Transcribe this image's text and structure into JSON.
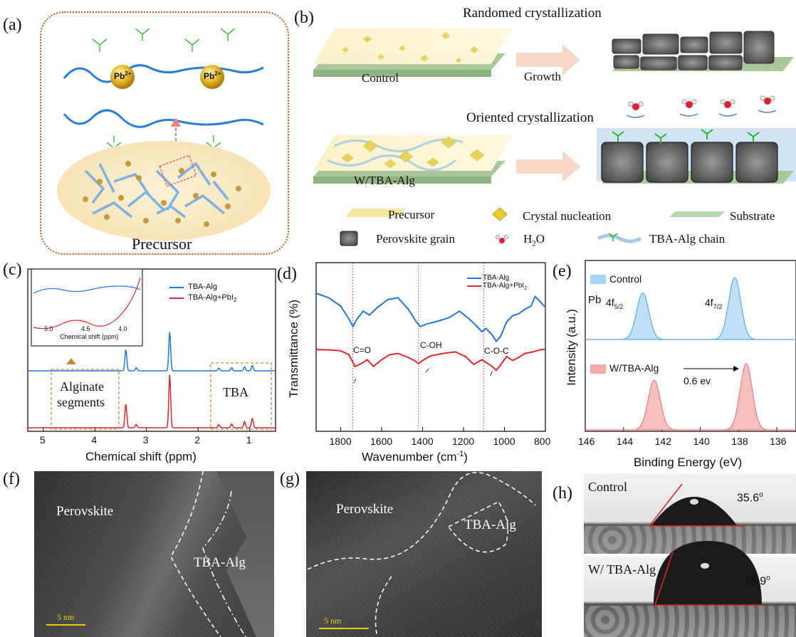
{
  "panels": {
    "a": {
      "label": "(a)",
      "ion": "Pb",
      "ion_charge": "2+",
      "caption": "Precursor"
    },
    "b": {
      "label": "(b)",
      "title_random": "Randomed crystallization",
      "title_oriented": "Oriented crystallization",
      "film_control": "Control",
      "film_tba": "W/TBA-Alg",
      "arrow_label": "Growth",
      "legend": {
        "precursor": "Precursor",
        "nucleation": "Crystal nucleation",
        "substrate": "Substrate",
        "grain": "Perovskite grain",
        "water": "H2O",
        "chain": "TBA-Alg chain"
      }
    },
    "c": {
      "label": "(c)",
      "xlabel": "Chemical shift (ppm)",
      "xticks": [
        "5",
        "4",
        "3",
        "2",
        "1"
      ],
      "legend": [
        "TBA-Alg",
        "TBA-Alg+PbI2"
      ],
      "inset_xlabel": "Chemical shift (ppm)",
      "inset_xticks": [
        "5.0",
        "4.5",
        "4.0"
      ],
      "box_alginate_1": "Alginate",
      "box_alginate_2": "segments",
      "box_tba": "TBA"
    },
    "d": {
      "label": "(d)",
      "xlabel": "Wavenumber (cm",
      "xlabel_sup": "-1",
      "xlabel_end": ")",
      "ylabel": "Transmittance (%)",
      "xticks": [
        "1800",
        "1600",
        "1400",
        "1200",
        "1000",
        "800"
      ],
      "legend": [
        "TBA-Alg",
        "TBA-Alg+PbI2"
      ],
      "ann": [
        "C=O",
        "C-OH",
        "C-O-C"
      ]
    },
    "e": {
      "label": "(e)",
      "xlabel": "Binding Energy (eV)",
      "ylabel": "Intensity (a.u.)",
      "xticks": [
        "146",
        "144",
        "142",
        "140",
        "138",
        "136"
      ],
      "legend_control": "Control",
      "legend_tba": "W/TBA-Alg",
      "pb": "Pb",
      "peak1": "4f",
      "peak1_sub": "5/2",
      "peak2": "4f",
      "peak2_sub": "7/2",
      "shift": "0.6 ev"
    },
    "f": {
      "label": "(f)",
      "perov": "Perovskite",
      "tba": "TBA-Alg",
      "scale": "5  nm"
    },
    "g": {
      "label": "(g)",
      "perov": "Perovskite",
      "tba": "TBA-Alg",
      "scale": "5  nm"
    },
    "h": {
      "label": "(h)",
      "control": "Control",
      "angle1": "35.6",
      "tba": "W/ TBA-Alg",
      "angle2": "78.9",
      "deg": "o"
    }
  },
  "chart_data": [
    {
      "type": "line",
      "panel": "c",
      "xlabel": "Chemical shift (ppm)",
      "xlim": [
        5.3,
        0.5
      ],
      "series": [
        {
          "name": "TBA-Alg",
          "color": "#1f77e0",
          "peaks": [
            [
              3.4,
              0.55
            ],
            [
              3.2,
              0.08
            ],
            [
              2.55,
              1.0
            ],
            [
              1.6,
              0.07
            ],
            [
              1.35,
              0.08
            ],
            [
              1.1,
              0.1
            ],
            [
              0.95,
              0.14
            ]
          ]
        },
        {
          "name": "TBA-Alg+PbI2",
          "color": "#e0262a",
          "peaks": [
            [
              3.4,
              0.45
            ],
            [
              3.2,
              0.06
            ],
            [
              2.55,
              1.0
            ],
            [
              1.6,
              0.06
            ],
            [
              1.35,
              0.07
            ],
            [
              1.1,
              0.12
            ],
            [
              0.95,
              0.18
            ]
          ]
        }
      ]
    },
    {
      "type": "line",
      "panel": "d",
      "xlabel": "Wavenumber (cm-1)",
      "ylabel": "Transmittance (%)",
      "xlim": [
        1920,
        800
      ],
      "series": [
        {
          "name": "TBA-Alg",
          "color": "#1f77e0",
          "x": [
            1920,
            1860,
            1800,
            1760,
            1740,
            1720,
            1690,
            1660,
            1620,
            1570,
            1520,
            1470,
            1430,
            1410,
            1380,
            1330,
            1270,
            1220,
            1180,
            1140,
            1110,
            1090,
            1060,
            1040,
            1020,
            990,
            960,
            930,
            900,
            870,
            850,
            820,
            800
          ],
          "y": [
            1.0,
            0.93,
            0.8,
            0.6,
            0.48,
            0.6,
            0.72,
            0.66,
            0.78,
            0.9,
            0.93,
            0.75,
            0.55,
            0.48,
            0.52,
            0.56,
            0.62,
            0.72,
            0.62,
            0.5,
            0.4,
            0.45,
            0.35,
            0.25,
            0.32,
            0.55,
            0.65,
            0.68,
            0.75,
            0.8,
            0.95,
            0.85,
            0.78
          ]
        },
        {
          "name": "TBA-Alg+PbI2",
          "color": "#e0262a",
          "x": [
            1920,
            1860,
            1800,
            1760,
            1730,
            1700,
            1670,
            1640,
            1600,
            1560,
            1520,
            1480,
            1440,
            1420,
            1400,
            1360,
            1300,
            1240,
            1190,
            1150,
            1110,
            1080,
            1060,
            1040,
            1020,
            990,
            960,
            930,
            900,
            860,
            820,
            800
          ],
          "y": [
            0.98,
            0.97,
            0.95,
            0.85,
            0.55,
            0.62,
            0.72,
            0.55,
            0.72,
            0.85,
            0.88,
            0.8,
            0.7,
            0.62,
            0.7,
            0.82,
            0.88,
            0.92,
            0.8,
            0.6,
            0.72,
            0.62,
            0.55,
            0.45,
            0.58,
            0.8,
            0.7,
            0.78,
            0.88,
            0.92,
            0.98,
            0.98
          ]
        }
      ],
      "markers": [
        1740,
        1420,
        1100
      ]
    },
    {
      "type": "line",
      "panel": "e",
      "xlabel": "Binding Energy (eV)",
      "ylabel": "Intensity (a.u.)",
      "xlim": [
        146,
        135
      ],
      "series": [
        {
          "name": "Control",
          "color": "#5aaee8",
          "peaks": [
            [
              143.0,
              0.75
            ],
            [
              138.2,
              1.0
            ]
          ]
        },
        {
          "name": "W/TBA-Alg",
          "color": "#ee7a7a",
          "peaks": [
            [
              142.4,
              0.75
            ],
            [
              137.6,
              1.0
            ]
          ]
        }
      ]
    }
  ]
}
